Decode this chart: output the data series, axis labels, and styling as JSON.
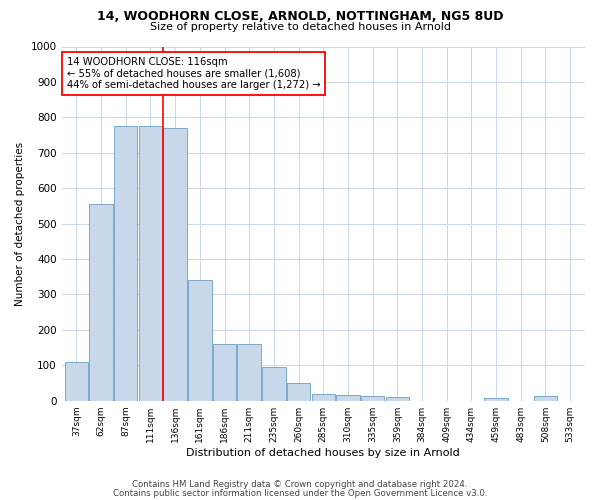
{
  "title1": "14, WOODHORN CLOSE, ARNOLD, NOTTINGHAM, NG5 8UD",
  "title2": "Size of property relative to detached houses in Arnold",
  "xlabel": "Distribution of detached houses by size in Arnold",
  "ylabel": "Number of detached properties",
  "categories": [
    "37sqm",
    "62sqm",
    "87sqm",
    "111sqm",
    "136sqm",
    "161sqm",
    "186sqm",
    "211sqm",
    "235sqm",
    "260sqm",
    "285sqm",
    "310sqm",
    "335sqm",
    "359sqm",
    "384sqm",
    "409sqm",
    "434sqm",
    "459sqm",
    "483sqm",
    "508sqm",
    "533sqm"
  ],
  "values": [
    110,
    555,
    775,
    775,
    770,
    340,
    160,
    160,
    95,
    50,
    20,
    15,
    12,
    10,
    0,
    0,
    0,
    7,
    0,
    12,
    0
  ],
  "bar_color": "#c8d8ea",
  "bar_edge_color": "#6a9fc0",
  "vline_x": 3.5,
  "vline_color": "red",
  "annotation_line1": "14 WOODHORN CLOSE: 116sqm",
  "annotation_line2": "← 55% of detached houses are smaller (1,608)",
  "annotation_line3": "44% of semi-detached houses are larger (1,272) →",
  "ylim": [
    0,
    1000
  ],
  "yticks": [
    0,
    100,
    200,
    300,
    400,
    500,
    600,
    700,
    800,
    900,
    1000
  ],
  "footer1": "Contains HM Land Registry data © Crown copyright and database right 2024.",
  "footer2": "Contains public sector information licensed under the Open Government Licence v3.0.",
  "background_color": "#ffffff",
  "grid_color": "#c8d8e8"
}
